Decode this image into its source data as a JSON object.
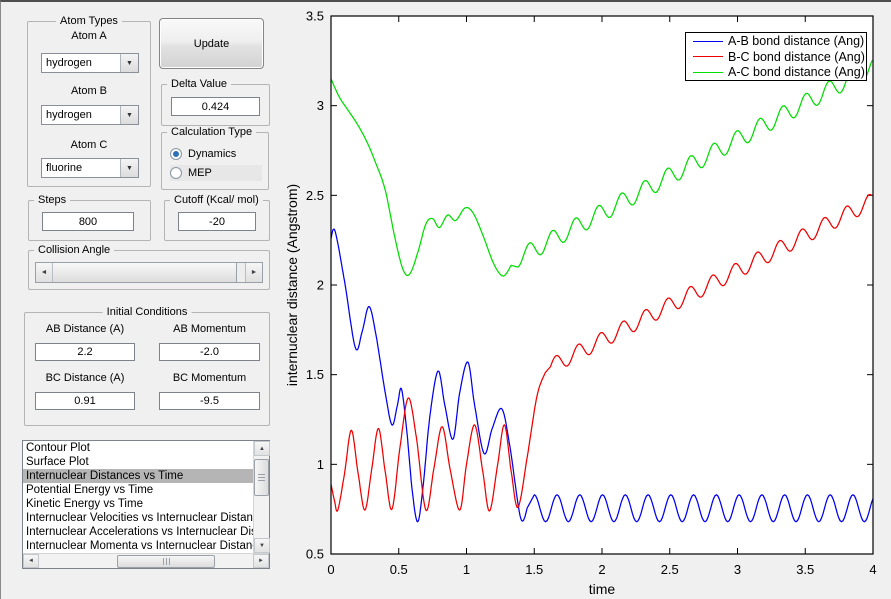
{
  "controls": {
    "atom_types": {
      "legend": "Atom Types",
      "fields": [
        {
          "label": "Atom A",
          "value": "hydrogen"
        },
        {
          "label": "Atom B",
          "value": "hydrogen"
        },
        {
          "label": "Atom C",
          "value": "fluorine"
        }
      ]
    },
    "update_button": "Update",
    "delta": {
      "legend": "Delta Value",
      "value": "0.424"
    },
    "calculation": {
      "legend": "Calculation Type",
      "options": [
        {
          "label": "Dynamics",
          "selected": true
        },
        {
          "label": "MEP",
          "selected": false
        }
      ]
    },
    "steps": {
      "legend": "Steps",
      "value": "800"
    },
    "cutoff": {
      "legend": "Cutoff (Kcal/ mol)",
      "value": "-20"
    },
    "collision": {
      "legend": "Collision Angle"
    },
    "initial": {
      "legend": "Initial Conditions",
      "fields": [
        {
          "label": "AB Distance (A)",
          "value": "2.2"
        },
        {
          "label": "AB Momentum",
          "value": "-2.0"
        },
        {
          "label": "BC Distance (A)",
          "value": "0.91"
        },
        {
          "label": "BC Momentum",
          "value": "-9.5"
        }
      ]
    },
    "plot_list": {
      "selected_index": 2,
      "items": [
        "Contour Plot",
        "Surface Plot",
        "Internuclear Distances vs Time",
        "Potential Energy vs Time",
        "Kinetic Energy vs Time",
        "Internuclear Velocities vs Internuclear Distance",
        "Internuclear Accelerations vs Internuclear Distance",
        "Internuclear Momenta vs Internuclear Distance"
      ]
    }
  },
  "chart_data": {
    "type": "line",
    "title": "",
    "xlabel": "time",
    "ylabel": "internuclear distance (Angstrom)",
    "xlim": [
      0,
      4
    ],
    "ylim": [
      0.5,
      3.5
    ],
    "x_ticks": [
      0,
      0.5,
      1,
      1.5,
      2,
      2.5,
      3,
      3.5,
      4
    ],
    "y_ticks": [
      0.5,
      1,
      1.5,
      2,
      2.5,
      3,
      3.5
    ],
    "grid": false,
    "legend_position": "top-right",
    "plot_bg": "#ffffff",
    "series": [
      {
        "name": "A-B bond distance (Ang)",
        "color": "#0000ee",
        "keypoints": [
          [
            0,
            2.26
          ],
          [
            0.03,
            2.3
          ],
          [
            0.1,
            2.02
          ],
          [
            0.18,
            1.65
          ],
          [
            0.23,
            1.74
          ],
          [
            0.28,
            1.88
          ],
          [
            0.33,
            1.73
          ],
          [
            0.4,
            1.4
          ],
          [
            0.45,
            1.22
          ],
          [
            0.49,
            1.33
          ],
          [
            0.52,
            1.42
          ],
          [
            0.56,
            1.18
          ],
          [
            0.6,
            0.85
          ],
          [
            0.64,
            0.68
          ],
          [
            0.68,
            0.88
          ],
          [
            0.73,
            1.27
          ],
          [
            0.79,
            1.52
          ],
          [
            0.84,
            1.33
          ],
          [
            0.9,
            1.14
          ],
          [
            0.95,
            1.4
          ],
          [
            1.01,
            1.57
          ],
          [
            1.06,
            1.33
          ],
          [
            1.13,
            1.06
          ],
          [
            1.19,
            1.2
          ],
          [
            1.26,
            1.31
          ],
          [
            1.32,
            1.1
          ],
          [
            1.4,
            0.7
          ],
          [
            1.45,
            0.76
          ]
        ],
        "tail": {
          "t_start": 1.5,
          "t_end": 4.0,
          "base_start": 0.755,
          "base_end": 0.755,
          "amplitude": 0.075,
          "period": 0.168,
          "phase_deg": 90
        }
      },
      {
        "name": "B-C bond distance (Ang)",
        "color": "#ee0000",
        "keypoints": [
          [
            0,
            0.89
          ],
          [
            0.025,
            0.8
          ],
          [
            0.05,
            0.745
          ],
          [
            0.1,
            0.95
          ],
          [
            0.15,
            1.19
          ],
          [
            0.2,
            0.95
          ],
          [
            0.25,
            0.745
          ],
          [
            0.3,
            0.97
          ],
          [
            0.35,
            1.2
          ],
          [
            0.4,
            0.96
          ],
          [
            0.45,
            0.75
          ],
          [
            0.51,
            1.1
          ],
          [
            0.57,
            1.37
          ],
          [
            0.63,
            1.15
          ],
          [
            0.7,
            0.745
          ],
          [
            0.76,
            0.98
          ],
          [
            0.82,
            1.21
          ],
          [
            0.88,
            0.97
          ],
          [
            0.95,
            0.745
          ],
          [
            1.0,
            1.0
          ],
          [
            1.06,
            1.22
          ],
          [
            1.12,
            0.96
          ],
          [
            1.17,
            0.74
          ],
          [
            1.23,
            1.0
          ],
          [
            1.28,
            1.22
          ],
          [
            1.33,
            0.96
          ],
          [
            1.38,
            0.76
          ],
          [
            1.45,
            1.05
          ],
          [
            1.52,
            1.38
          ],
          [
            1.58,
            1.51
          ]
        ],
        "tail": {
          "t_start": 1.62,
          "t_end": 4.0,
          "base_start": 1.545,
          "base_end": 2.47,
          "amplitude": 0.045,
          "period": 0.165,
          "phase_deg": 0
        }
      },
      {
        "name": "A-C bond distance (Ang)",
        "color": "#00dd00",
        "keypoints": [
          [
            0,
            3.15
          ],
          [
            0.06,
            3.05
          ],
          [
            0.13,
            2.97
          ],
          [
            0.2,
            2.89
          ],
          [
            0.27,
            2.79
          ],
          [
            0.33,
            2.68
          ],
          [
            0.4,
            2.53
          ],
          [
            0.47,
            2.27
          ],
          [
            0.53,
            2.09
          ],
          [
            0.58,
            2.06
          ],
          [
            0.64,
            2.18
          ],
          [
            0.7,
            2.34
          ],
          [
            0.75,
            2.37
          ],
          [
            0.8,
            2.32
          ],
          [
            0.86,
            2.39
          ],
          [
            0.92,
            2.36
          ],
          [
            0.99,
            2.43
          ],
          [
            1.05,
            2.4
          ],
          [
            1.12,
            2.28
          ],
          [
            1.2,
            2.12
          ],
          [
            1.27,
            2.05
          ],
          [
            1.33,
            2.11
          ]
        ],
        "tail": {
          "t_start": 1.38,
          "t_end": 4.0,
          "base_start": 2.15,
          "base_end": 3.22,
          "amplitude": 0.05,
          "period": 0.17,
          "phase_deg": -90
        }
      }
    ]
  }
}
